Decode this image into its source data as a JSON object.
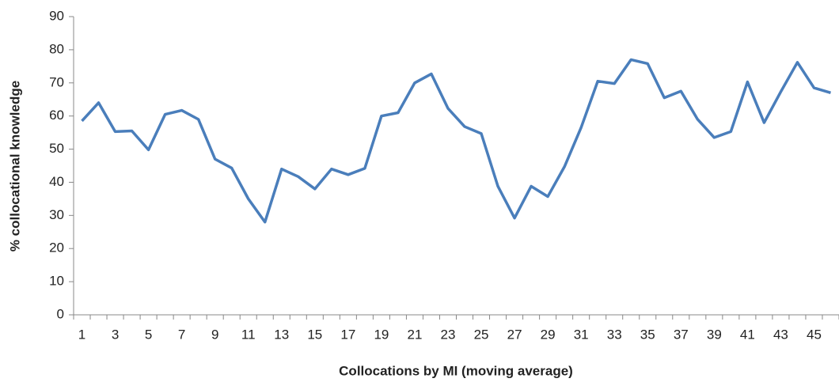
{
  "chart_data": {
    "type": "line",
    "xlabel": "Collocations by MI (moving average)",
    "ylabel": "% collocational knowledge",
    "categories": [
      "1",
      null,
      "3",
      null,
      "5",
      null,
      "7",
      null,
      "9",
      null,
      "11",
      null,
      "13",
      null,
      "15",
      null,
      "17",
      null,
      "19",
      null,
      "21",
      null,
      "23",
      null,
      "25",
      null,
      "27",
      null,
      "29",
      null,
      "31",
      null,
      "33",
      null,
      "35",
      null,
      "37",
      null,
      "39",
      null,
      "41",
      null,
      "43",
      null,
      "45",
      null
    ],
    "series": [
      {
        "name": "% collocational knowledge",
        "color": "#4a7ebb",
        "values": [
          58.5,
          64,
          55.3,
          55.5,
          49.8,
          60.5,
          61.7,
          59,
          47,
          44.3,
          35,
          28,
          44,
          41.7,
          38,
          44,
          42.3,
          44.2,
          60,
          61,
          70,
          72.7,
          62.3,
          56.8,
          54.7,
          38.8,
          29.2,
          38.8,
          35.7,
          44.7,
          56.5,
          70.5,
          69.8,
          77,
          75.8,
          65.5,
          67.5,
          59,
          53.5,
          55.3,
          70.3,
          58,
          67.3,
          76.2,
          68.5,
          67
        ]
      }
    ],
    "ylim": [
      0,
      90
    ],
    "yticks": [
      0,
      10,
      20,
      30,
      40,
      50,
      60,
      70,
      80,
      90
    ]
  }
}
